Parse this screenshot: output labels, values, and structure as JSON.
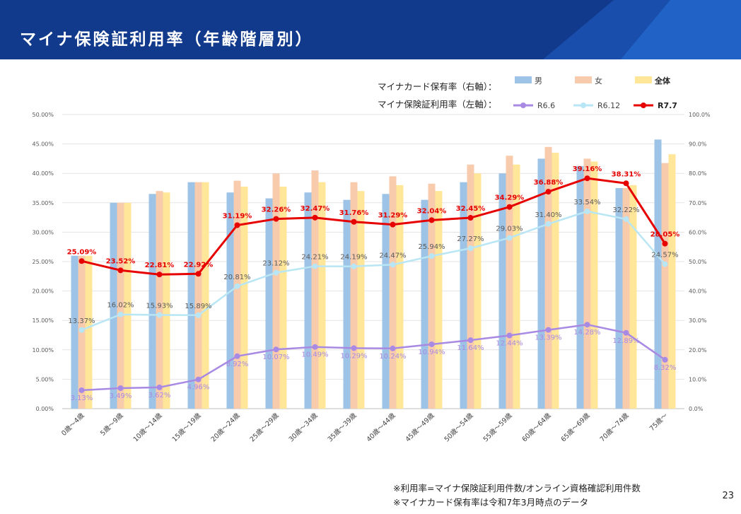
{
  "header": {
    "title": "マイナ保険証利用率（年齢階層別）"
  },
  "legend": {
    "card_label": "マイナカード保有率（右軸）：",
    "usage_label": "マイナ保険証利用率（左軸）：",
    "bars": [
      "男",
      "女",
      "全体"
    ],
    "lines": [
      "R6.6",
      "R6.12",
      "R7.7"
    ]
  },
  "colors": {
    "male": "#9dc3e6",
    "female": "#f8cbad",
    "total": "#ffe699",
    "r66": "#a889e3",
    "r612": "#b8e6f5",
    "r77": "#e60000"
  },
  "chart_data": {
    "type": "bar",
    "categories": [
      "0歳～4歳",
      "5歳～9歳",
      "10歳～14歳",
      "15歳～19歳",
      "20歳～24歳",
      "25歳～29歳",
      "30歳～34歳",
      "35歳～39歳",
      "40歳～44歳",
      "45歳～49歳",
      "50歳～54歳",
      "55歳～59歳",
      "60歳～64歳",
      "65歳～69歳",
      "70歳～74歳",
      "75歳～"
    ],
    "left_axis": {
      "ylim": [
        0,
        50
      ],
      "ticks": [
        "0.00%",
        "5.00%",
        "10.00%",
        "15.00%",
        "20.00%",
        "25.00%",
        "30.00%",
        "35.00%",
        "40.00%",
        "45.00%",
        "50.00%"
      ]
    },
    "right_axis": {
      "ylim": [
        0,
        100
      ],
      "ticks": [
        "0.0%",
        "10.0%",
        "20.0%",
        "30.0%",
        "40.0%",
        "50.0%",
        "60.0%",
        "70.0%",
        "80.0%",
        "90.0%",
        "100.0%"
      ]
    },
    "bar_series": [
      {
        "name": "男",
        "axis": "right",
        "values": [
          52,
          70,
          73,
          77,
          73.5,
          71.5,
          73.5,
          71,
          73,
          71,
          77,
          80,
          85,
          82.5,
          75,
          91.5
        ]
      },
      {
        "name": "女",
        "axis": "right",
        "values": [
          52,
          70,
          74,
          77,
          77.5,
          80,
          81,
          77,
          79,
          76.5,
          83,
          86,
          89,
          85,
          75,
          83.5
        ]
      },
      {
        "name": "全体",
        "axis": "right",
        "values": [
          52,
          70,
          73.5,
          77,
          75.5,
          75.5,
          77,
          74,
          76,
          74,
          80,
          83,
          87,
          84,
          76,
          86.5
        ]
      }
    ],
    "line_series": [
      {
        "name": "R6.6",
        "axis": "left",
        "values": [
          3.13,
          3.49,
          3.62,
          4.96,
          8.92,
          10.07,
          10.49,
          10.29,
          10.24,
          10.94,
          11.64,
          12.44,
          13.39,
          14.28,
          12.89,
          8.32
        ],
        "labels": [
          "3.13%",
          "3.49%",
          "3.62%",
          "4.96%",
          "8.92%",
          "10.07%",
          "10.49%",
          "10.29%",
          "10.24%",
          "10.94%",
          "11.64%",
          "12.44%",
          "13.39%",
          "14.28%",
          "12.89%",
          "8.32%"
        ]
      },
      {
        "name": "R6.12",
        "axis": "left",
        "values": [
          13.37,
          16.02,
          15.93,
          15.89,
          20.81,
          23.12,
          24.21,
          24.19,
          24.47,
          25.94,
          27.27,
          29.03,
          31.4,
          33.54,
          32.22,
          24.57
        ],
        "labels": [
          "13.37%",
          "16.02%",
          "15.93%",
          "15.89%",
          "20.81%",
          "23.12%",
          "24.21%",
          "24.19%",
          "24.47%",
          "25.94%",
          "27.27%",
          "29.03%",
          "31.40%",
          "33.54%",
          "32.22%",
          "24.57%"
        ]
      },
      {
        "name": "R7.7",
        "axis": "left",
        "values": [
          25.09,
          23.52,
          22.81,
          22.92,
          31.19,
          32.26,
          32.47,
          31.76,
          31.29,
          32.04,
          32.45,
          34.29,
          36.88,
          39.16,
          38.31,
          28.05
        ],
        "labels": [
          "25.09%",
          "23.52%",
          "22.81%",
          "22.92%",
          "31.19%",
          "32.26%",
          "32.47%",
          "31.76%",
          "31.29%",
          "32.04%",
          "32.45%",
          "34.29%",
          "36.88%",
          "39.16%",
          "38.31%",
          "28.05%"
        ]
      }
    ]
  },
  "footnotes": [
    "※利用率=マイナ保険証利用件数/オンライン資格確認利用件数",
    "※マイナカード保有率は令和7年3月時点のデータ"
  ],
  "page_number": "23"
}
